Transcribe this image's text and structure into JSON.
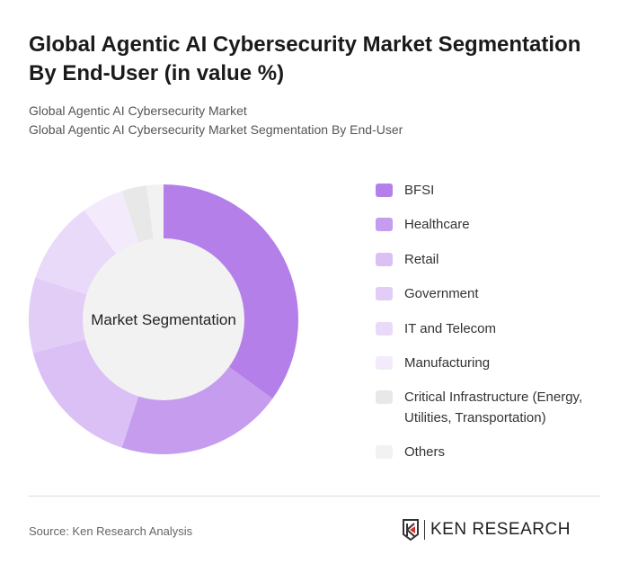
{
  "title": "Global Agentic AI Cybersecurity Market Segmentation By End-User (in value %)",
  "subtitle_1": "Global Agentic AI Cybersecurity Market",
  "subtitle_2": "Global Agentic AI Cybersecurity Market Segmentation By End-User",
  "source": "Source: Ken Research Analysis",
  "logo_text": "KEN RESEARCH",
  "chart_data": {
    "type": "pie",
    "variant": "donut",
    "center_label": "Market Segmentation",
    "legend_position": "right",
    "categories": [
      "BFSI",
      "Healthcare",
      "Retail",
      "Government",
      "IT and Telecom",
      "Manufacturing",
      "Critical Infrastructure (Energy, Utilities, Transportation)",
      "Others"
    ],
    "values": [
      35,
      20,
      16,
      9,
      10,
      5,
      3,
      2
    ],
    "colors": [
      "#b57fe9",
      "#c59cee",
      "#dac0f5",
      "#e2cdf7",
      "#eadaf9",
      "#f3ebfc",
      "#e8e8e8",
      "#f2f2f2"
    ]
  }
}
